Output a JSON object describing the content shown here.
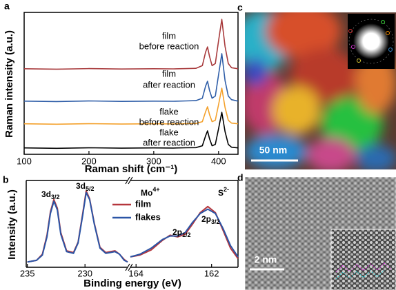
{
  "panel_labels": [
    "a",
    "b",
    "c",
    "d"
  ],
  "images": {
    "c": {
      "scale_bar": "50 nm"
    },
    "d": {
      "scale_bar": "2 nm"
    }
  },
  "chart_data": [
    {
      "type": "line",
      "x_label": "Raman shift (cm⁻¹)",
      "y_label": "Raman intensity (a.u.)",
      "xlim": [
        100,
        430
      ],
      "xticks": [
        100,
        200,
        300,
        400
      ],
      "ylim": [
        0,
        10
      ],
      "x": [
        100,
        150,
        200,
        250,
        300,
        330,
        350,
        365,
        375,
        380,
        383,
        386,
        390,
        395,
        400,
        405,
        410,
        415,
        420,
        430
      ],
      "series": [
        {
          "label": [
            "film",
            "before reaction"
          ],
          "color": "#a83a3c",
          "values": [
            6.03,
            6.0,
            6.04,
            6.01,
            6.03,
            6.02,
            6.04,
            6.06,
            6.25,
            7.2,
            7.57,
            6.9,
            6.25,
            6.4,
            8.0,
            9.51,
            7.6,
            6.4,
            6.1,
            6.03
          ]
        },
        {
          "label": [
            "film",
            "after reaction"
          ],
          "color": "#2f5ea8",
          "values": [
            3.75,
            3.72,
            3.76,
            3.73,
            3.75,
            3.74,
            3.76,
            3.78,
            3.95,
            4.8,
            5.15,
            4.5,
            3.95,
            4.1,
            5.6,
            7.09,
            5.2,
            4.1,
            3.85,
            3.75
          ]
        },
        {
          "label": [
            "flake",
            "before reaction"
          ],
          "color": "#f4a12c",
          "values": [
            2.15,
            2.12,
            2.16,
            2.13,
            2.15,
            2.14,
            2.16,
            2.17,
            2.3,
            3.0,
            3.35,
            2.8,
            2.3,
            2.4,
            3.5,
            4.66,
            3.3,
            2.4,
            2.2,
            2.15
          ]
        },
        {
          "label": [
            "flake",
            "after reaction"
          ],
          "color": "#000000",
          "values": [
            0.45,
            0.42,
            0.46,
            0.43,
            0.45,
            0.44,
            0.46,
            0.47,
            0.6,
            1.3,
            1.65,
            1.1,
            0.6,
            0.7,
            1.8,
            2.96,
            1.6,
            0.7,
            0.5,
            0.45
          ]
        }
      ]
    },
    {
      "type": "broken-line",
      "x_label": "Binding energy (eV)",
      "y_label": "Intensity (a.u.)",
      "ylim": [
        0,
        1
      ],
      "segments": [
        {
          "xlim": [
            235.1,
            226.3
          ],
          "xticks": [
            235,
            230
          ],
          "x": [
            235,
            234.2,
            233.7,
            233.3,
            233,
            232.7,
            232.4,
            232.1,
            231.6,
            231,
            230.6,
            230.2,
            229.9,
            229.6,
            229.2,
            228.7,
            228.2,
            227.8,
            227.4,
            227,
            226.6,
            226.3
          ]
        },
        {
          "xlim": [
            164.15,
            161.3
          ],
          "xticks": [
            164,
            162
          ],
          "x": [
            164.15,
            163.9,
            163.6,
            163.3,
            163.1,
            162.9,
            162.7,
            162.5,
            162.3,
            162.1,
            161.9,
            161.7,
            161.5,
            161.3
          ]
        }
      ],
      "series": [
        {
          "name": "film",
          "color": "#b5363c",
          "values": [
            [
              0.06,
              0.08,
              0.15,
              0.37,
              0.64,
              0.78,
              0.68,
              0.4,
              0.19,
              0.17,
              0.29,
              0.62,
              0.88,
              0.79,
              0.51,
              0.23,
              0.17,
              0.18,
              0.19,
              0.15,
              0.09,
              0.06
            ],
            [
              0.12,
              0.14,
              0.2,
              0.31,
              0.37,
              0.35,
              0.38,
              0.5,
              0.63,
              0.7,
              0.63,
              0.43,
              0.22,
              0.1
            ]
          ]
        },
        {
          "name": "flakes",
          "color": "#2b55a6",
          "values": [
            [
              0.06,
              0.08,
              0.14,
              0.35,
              0.62,
              0.76,
              0.66,
              0.38,
              0.18,
              0.16,
              0.28,
              0.6,
              0.86,
              0.78,
              0.5,
              0.22,
              0.16,
              0.17,
              0.18,
              0.15,
              0.08,
              0.06
            ],
            [
              0.12,
              0.15,
              0.22,
              0.32,
              0.36,
              0.36,
              0.4,
              0.52,
              0.62,
              0.67,
              0.62,
              0.45,
              0.25,
              0.12
            ]
          ]
        }
      ],
      "annotations": [
        {
          "text": "3d",
          "sub": "3/2"
        },
        {
          "text": "3d",
          "sub": "5/2"
        },
        {
          "text": "Mo",
          "sup": "4+"
        },
        {
          "text": "S",
          "sup": "2-"
        },
        {
          "text": "2p",
          "sub": "1/2"
        },
        {
          "text": "2p",
          "sub": "3/2"
        }
      ]
    }
  ]
}
